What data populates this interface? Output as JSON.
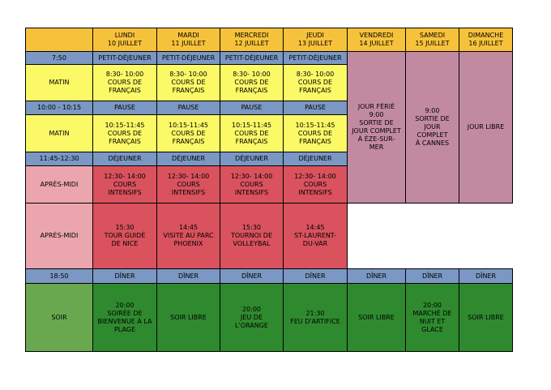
{
  "header": {
    "days": [
      {
        "name": "Lundi",
        "date": "10 juillet"
      },
      {
        "name": "Mardi",
        "date": "11 juillet"
      },
      {
        "name": "Mercredi",
        "date": "12 juillet"
      },
      {
        "name": "Jeudi",
        "date": "13 juillet"
      },
      {
        "name": "Vendredi",
        "date": "14 juillet"
      },
      {
        "name": "Samedi",
        "date": "15 juillet"
      },
      {
        "name": "Dimanche",
        "date": "16 juillet"
      }
    ]
  },
  "rows": {
    "breakfast": {
      "label": "7:50",
      "item": "Petit-déjeuner"
    },
    "morning1": {
      "label": "Matin",
      "item": "8:30- 10:00\nCours de\nfrançais"
    },
    "pause": {
      "label": "10:00 - 10:15",
      "item": "Pause"
    },
    "morning2": {
      "label": "Matin",
      "item": "10:15-11:45\nCours de\nfrançais"
    },
    "lunch": {
      "label": "11:45-12:30",
      "item": "Déjeuner"
    },
    "afternoon1": {
      "label": "Après-midi",
      "item": "12:30- 14:00\nCours\nintensifs"
    },
    "afternoon2": {
      "label": "Après-midi",
      "items": [
        "15:30\nTour guidé\nde Nice",
        "14:45\nVisite au parc\nPhoenix",
        "15:30\nTournoi de\nvolleybal",
        "14:45\nSt-Laurent-\ndu-Var"
      ]
    },
    "dinner": {
      "label": "18:50",
      "item": "Dîner"
    },
    "evening": {
      "label": "Soir",
      "items": [
        "20:00\nSoirée de\nbienvenue à la\nplage",
        "Soir libre",
        "20:00\nJeu de\nl'orange",
        "21:30\nFeu d'artifice",
        "Soir libre",
        "20:00\nMarché de\nnuit et\nglace",
        "Soir libre"
      ]
    }
  },
  "special": {
    "friday": "Jour férié\n9:00\nSortie de\njour complet\nà Èze-sur-\nmer",
    "saturday": "9:00\nSortie de\njour\ncomplet\nà Cannes",
    "sunday": "Jour libre"
  }
}
